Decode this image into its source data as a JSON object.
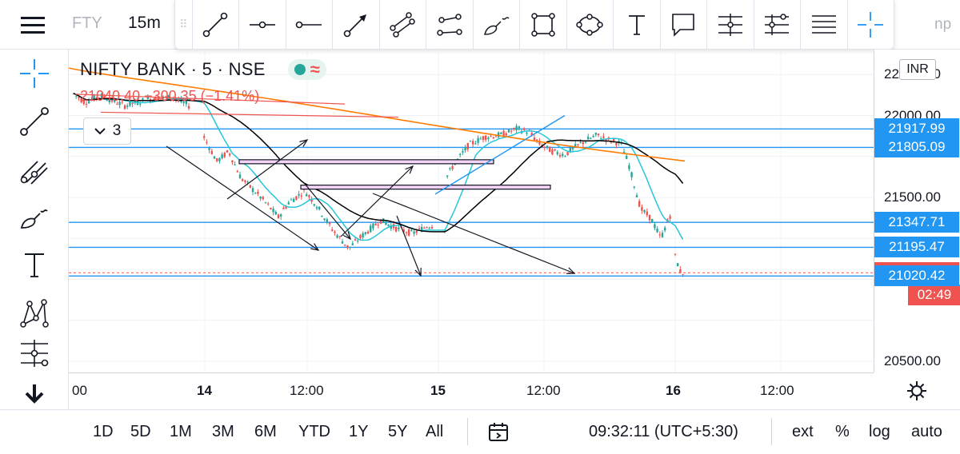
{
  "topbar": {
    "symbol_short": "FTY",
    "interval": "15m",
    "np_fragment": "np",
    "drawing_tools": [
      "trend-line",
      "horizontal-ray",
      "horizontal-line",
      "arrow",
      "parallel-channel",
      "path",
      "brush",
      "rectangle",
      "ellipse",
      "text",
      "callout",
      "long-position",
      "short-position",
      "fib-retracement",
      "crosshair"
    ]
  },
  "left_tools": [
    "crosshair",
    "trend-line",
    "pitchfork",
    "brush",
    "text",
    "xabcd-pattern",
    "long-position",
    "scroll-down"
  ],
  "legend": {
    "title": "NIFTY BANK · 5 · NSE",
    "quote": "21040.40  −300.35 (−1.41%)",
    "indicators_count": "3"
  },
  "price_axis": {
    "currency": "INR",
    "ticks": [
      {
        "value": 22250,
        "label": "22250.00"
      },
      {
        "value": 22000,
        "label": "22000.00"
      },
      {
        "value": 21500,
        "label": "21500.00"
      },
      {
        "value": 20500,
        "label": "20500.00"
      }
    ],
    "badges": [
      {
        "label": "21917.99",
        "kind": "blue",
        "value": 21917.99
      },
      {
        "label": "21805.09",
        "kind": "blue",
        "value": 21805.09
      },
      {
        "label": "21347.71",
        "kind": "blue",
        "value": 21347.71
      },
      {
        "label": "21195.47",
        "kind": "blue",
        "value": 21195.47
      },
      {
        "label": "21040.40",
        "kind": "red",
        "value": 21040.4
      },
      {
        "label": "02:49",
        "kind": "red",
        "value": null
      },
      {
        "label": "21020.42",
        "kind": "blue",
        "value": 21020.42
      }
    ]
  },
  "time_axis": {
    "labels": [
      "00",
      "14",
      "12:00",
      "15",
      "12:00",
      "16",
      "12:00"
    ],
    "bold": [
      false,
      true,
      false,
      true,
      false,
      true,
      false
    ]
  },
  "bottombar": {
    "ranges": [
      "1D",
      "5D",
      "1M",
      "3M",
      "6M",
      "YTD",
      "1Y",
      "5Y",
      "All"
    ],
    "clock": "09:32:11 (UTC+5:30)",
    "options": [
      "ext",
      "%",
      "log",
      "auto"
    ]
  },
  "colors": {
    "up": "#26a69a",
    "down": "#ef5350",
    "hline": "#2196f3",
    "ema_fast": "#26c6da",
    "ema_slow": "#000000",
    "ma_long": "#ff7b00",
    "box_fill": "#f3d3f7"
  }
}
